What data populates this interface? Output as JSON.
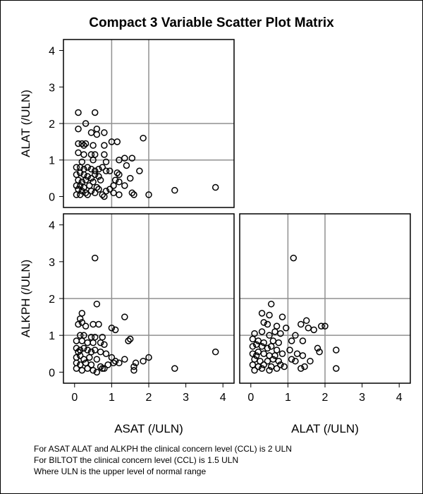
{
  "chart_data": {
    "type": "scatter",
    "title": "Compact 3 Variable Scatter Plot Matrix",
    "axis_range": [
      -0.3,
      4.3
    ],
    "ticks": [
      0,
      1,
      2,
      3,
      4
    ],
    "reference_lines": [
      1,
      2
    ],
    "grid": "reference lines at 1 and 2 ULN",
    "marker": "open circle",
    "panels": [
      {
        "name": "ASAT vs ALAT",
        "xlabel": "",
        "ylabel": "ALAT (/ULN)",
        "points": [
          [
            0.1,
            2.3
          ],
          [
            0.55,
            2.3
          ],
          [
            0.3,
            2.0
          ],
          [
            0.1,
            1.85
          ],
          [
            0.6,
            1.85
          ],
          [
            0.45,
            1.75
          ],
          [
            0.6,
            1.7
          ],
          [
            0.8,
            1.75
          ],
          [
            1.85,
            1.6
          ],
          [
            0.1,
            1.45
          ],
          [
            0.2,
            1.45
          ],
          [
            0.25,
            1.4
          ],
          [
            0.3,
            1.45
          ],
          [
            0.5,
            1.4
          ],
          [
            0.8,
            1.4
          ],
          [
            1.0,
            1.5
          ],
          [
            1.15,
            1.5
          ],
          [
            0.1,
            1.2
          ],
          [
            0.25,
            1.15
          ],
          [
            0.45,
            1.15
          ],
          [
            0.55,
            1.15
          ],
          [
            0.8,
            1.15
          ],
          [
            1.2,
            1.0
          ],
          [
            1.35,
            1.05
          ],
          [
            1.55,
            1.05
          ],
          [
            0.2,
            0.95
          ],
          [
            0.5,
            1.0
          ],
          [
            0.85,
            0.95
          ],
          [
            1.4,
            0.85
          ],
          [
            0.05,
            0.8
          ],
          [
            0.15,
            0.8
          ],
          [
            0.25,
            0.75
          ],
          [
            0.35,
            0.8
          ],
          [
            0.45,
            0.75
          ],
          [
            0.55,
            0.7
          ],
          [
            0.65,
            0.75
          ],
          [
            0.75,
            0.8
          ],
          [
            0.85,
            0.7
          ],
          [
            0.95,
            0.7
          ],
          [
            1.15,
            0.65
          ],
          [
            1.2,
            0.6
          ],
          [
            1.75,
            0.7
          ],
          [
            0.05,
            0.6
          ],
          [
            0.15,
            0.65
          ],
          [
            0.25,
            0.6
          ],
          [
            0.35,
            0.55
          ],
          [
            0.45,
            0.5
          ],
          [
            0.55,
            0.6
          ],
          [
            0.65,
            0.55
          ],
          [
            1.5,
            0.5
          ],
          [
            0.1,
            0.45
          ],
          [
            0.2,
            0.4
          ],
          [
            0.3,
            0.45
          ],
          [
            0.5,
            0.4
          ],
          [
            0.7,
            0.45
          ],
          [
            1.1,
            0.45
          ],
          [
            1.2,
            0.4
          ],
          [
            0.05,
            0.3
          ],
          [
            0.15,
            0.3
          ],
          [
            0.25,
            0.25
          ],
          [
            0.4,
            0.3
          ],
          [
            0.6,
            0.25
          ],
          [
            1.05,
            0.3
          ],
          [
            1.35,
            0.3
          ],
          [
            0.1,
            0.2
          ],
          [
            0.2,
            0.15
          ],
          [
            0.3,
            0.1
          ],
          [
            0.45,
            0.15
          ],
          [
            0.55,
            0.1
          ],
          [
            0.65,
            0.2
          ],
          [
            0.85,
            0.15
          ],
          [
            0.95,
            0.2
          ],
          [
            1.05,
            0.1
          ],
          [
            1.2,
            0.05
          ],
          [
            1.55,
            0.1
          ],
          [
            1.6,
            0.05
          ],
          [
            2.0,
            0.05
          ],
          [
            2.7,
            0.17
          ],
          [
            3.8,
            0.25
          ],
          [
            0.05,
            0.05
          ],
          [
            0.15,
            0.05
          ],
          [
            0.35,
            0.05
          ],
          [
            0.75,
            0.05
          ],
          [
            0.8,
            0.0
          ]
        ]
      },
      {
        "name": "ASAT vs ALKPH",
        "xlabel": "ASAT (/ULN)",
        "ylabel": "ALKPH (/ULN)",
        "points": [
          [
            0.55,
            3.1
          ],
          [
            0.6,
            1.85
          ],
          [
            0.2,
            1.6
          ],
          [
            0.15,
            1.45
          ],
          [
            1.35,
            1.5
          ],
          [
            0.1,
            1.3
          ],
          [
            0.2,
            1.35
          ],
          [
            0.3,
            1.25
          ],
          [
            0.5,
            1.3
          ],
          [
            0.65,
            1.3
          ],
          [
            1.0,
            1.2
          ],
          [
            1.1,
            1.15
          ],
          [
            0.15,
            1.0
          ],
          [
            0.25,
            1.0
          ],
          [
            0.45,
            0.95
          ],
          [
            0.55,
            0.95
          ],
          [
            0.75,
            0.95
          ],
          [
            0.05,
            0.85
          ],
          [
            0.2,
            0.85
          ],
          [
            0.35,
            0.8
          ],
          [
            0.5,
            0.8
          ],
          [
            0.7,
            0.8
          ],
          [
            0.8,
            0.75
          ],
          [
            1.45,
            0.85
          ],
          [
            1.5,
            0.9
          ],
          [
            0.05,
            0.65
          ],
          [
            0.15,
            0.6
          ],
          [
            0.25,
            0.65
          ],
          [
            0.35,
            0.6
          ],
          [
            0.45,
            0.55
          ],
          [
            0.55,
            0.6
          ],
          [
            0.7,
            0.55
          ],
          [
            0.85,
            0.5
          ],
          [
            3.8,
            0.55
          ],
          [
            0.05,
            0.4
          ],
          [
            0.15,
            0.45
          ],
          [
            0.25,
            0.35
          ],
          [
            0.4,
            0.4
          ],
          [
            0.6,
            0.35
          ],
          [
            1.0,
            0.4
          ],
          [
            1.1,
            0.3
          ],
          [
            1.35,
            0.35
          ],
          [
            2.0,
            0.4
          ],
          [
            0.05,
            0.25
          ],
          [
            0.15,
            0.2
          ],
          [
            0.3,
            0.25
          ],
          [
            0.45,
            0.2
          ],
          [
            0.7,
            0.15
          ],
          [
            0.8,
            0.1
          ],
          [
            0.9,
            0.2
          ],
          [
            1.05,
            0.25
          ],
          [
            1.2,
            0.25
          ],
          [
            1.6,
            0.15
          ],
          [
            1.65,
            0.25
          ],
          [
            1.85,
            0.3
          ],
          [
            0.05,
            0.1
          ],
          [
            0.2,
            0.05
          ],
          [
            0.35,
            0.1
          ],
          [
            0.5,
            0.05
          ],
          [
            0.75,
            0.1
          ],
          [
            1.6,
            0.05
          ],
          [
            2.7,
            0.1
          ],
          [
            0.1,
            0.55
          ],
          [
            0.6,
            0.0
          ]
        ]
      },
      {
        "name": "ALAT vs ALKPH",
        "xlabel": "ALAT (/ULN)",
        "ylabel": "",
        "points": [
          [
            1.15,
            3.1
          ],
          [
            0.55,
            1.85
          ],
          [
            0.3,
            1.6
          ],
          [
            0.5,
            1.55
          ],
          [
            0.85,
            1.5
          ],
          [
            1.5,
            1.4
          ],
          [
            0.35,
            1.35
          ],
          [
            0.45,
            1.3
          ],
          [
            0.7,
            1.25
          ],
          [
            0.95,
            1.2
          ],
          [
            1.35,
            1.3
          ],
          [
            1.55,
            1.2
          ],
          [
            1.7,
            1.15
          ],
          [
            1.9,
            1.25
          ],
          [
            2.0,
            1.25
          ],
          [
            0.1,
            1.05
          ],
          [
            0.3,
            1.1
          ],
          [
            0.5,
            1.0
          ],
          [
            0.65,
            1.1
          ],
          [
            0.8,
            1.05
          ],
          [
            1.2,
            1.0
          ],
          [
            0.05,
            0.9
          ],
          [
            0.2,
            0.85
          ],
          [
            0.35,
            0.8
          ],
          [
            0.6,
            0.85
          ],
          [
            0.75,
            0.8
          ],
          [
            1.1,
            0.85
          ],
          [
            1.4,
            0.85
          ],
          [
            0.05,
            0.7
          ],
          [
            0.15,
            0.75
          ],
          [
            0.3,
            0.7
          ],
          [
            0.45,
            0.65
          ],
          [
            0.55,
            0.7
          ],
          [
            0.7,
            0.6
          ],
          [
            1.05,
            0.6
          ],
          [
            1.8,
            0.65
          ],
          [
            1.85,
            0.55
          ],
          [
            2.3,
            0.6
          ],
          [
            0.05,
            0.5
          ],
          [
            0.2,
            0.55
          ],
          [
            0.35,
            0.5
          ],
          [
            0.5,
            0.45
          ],
          [
            0.65,
            0.45
          ],
          [
            0.85,
            0.5
          ],
          [
            1.25,
            0.5
          ],
          [
            1.4,
            0.45
          ],
          [
            0.1,
            0.35
          ],
          [
            0.25,
            0.3
          ],
          [
            0.45,
            0.3
          ],
          [
            0.6,
            0.35
          ],
          [
            0.75,
            0.3
          ],
          [
            1.1,
            0.35
          ],
          [
            1.2,
            0.3
          ],
          [
            1.6,
            0.3
          ],
          [
            0.05,
            0.2
          ],
          [
            0.2,
            0.15
          ],
          [
            0.35,
            0.2
          ],
          [
            0.55,
            0.15
          ],
          [
            0.8,
            0.2
          ],
          [
            0.9,
            0.15
          ],
          [
            1.35,
            0.1
          ],
          [
            1.45,
            0.15
          ],
          [
            0.1,
            0.05
          ],
          [
            0.3,
            0.1
          ],
          [
            0.5,
            0.05
          ],
          [
            0.7,
            0.1
          ],
          [
            2.3,
            0.1
          ],
          [
            0.15,
            0.45
          ]
        ]
      }
    ],
    "footnotes": [
      "For ASAT ALAT and ALKPH the clinical concern level (CCL) is 2 ULN",
      "For BILTOT the clinical concern level (CCL) is 1.5 ULN",
      "Where ULN is the upper level of normal range"
    ]
  }
}
